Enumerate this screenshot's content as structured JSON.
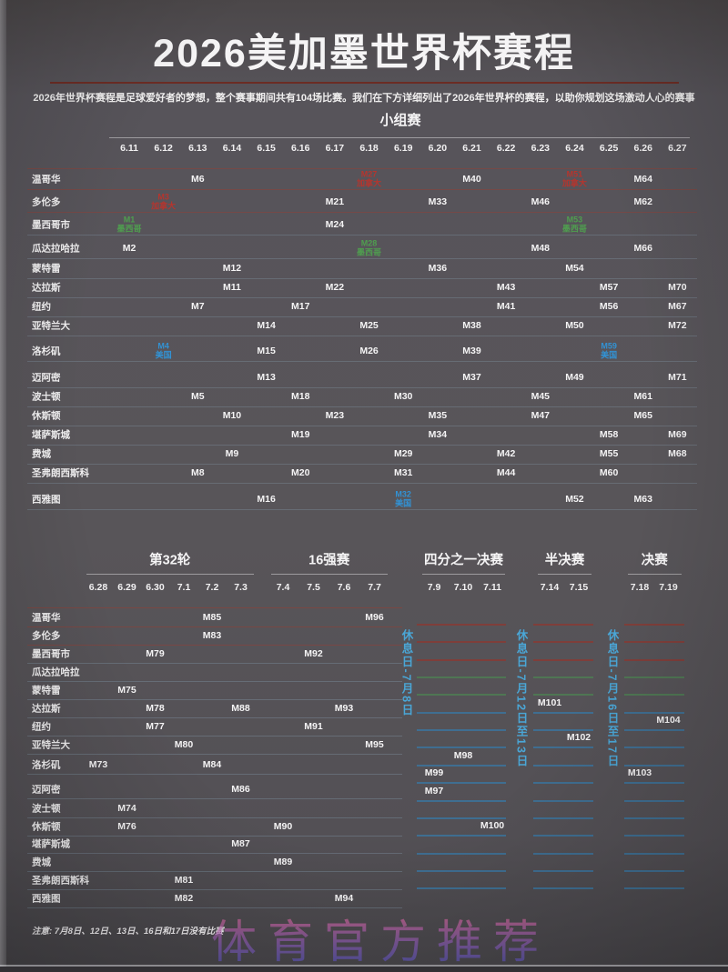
{
  "page": {
    "title": "2026美加墨世界杯赛程",
    "subtitle": "2026年世界杯赛程是足球爱好者的梦想，整个赛事期间共有104场比赛。我们在下方详细列出了2026年世界杯的赛程，以助你规划这场激动人心的赛事",
    "note": "注意: 7月8日、12日、13日、16日和17日没有比赛",
    "watermark": "体育官方推荐"
  },
  "colors": {
    "background": "#57545a",
    "title_rule": "#6e2a22",
    "mexico_green": "#4f9e4f",
    "usa_blue": "#3292d4",
    "canada_red": "#b5352e",
    "rest_day_blue": "#4aa6d6",
    "slot_blue": "#3976a0",
    "slot_red": "#8a3a33",
    "slot_green": "#4d7f53"
  },
  "chart_data": {
    "type": "table",
    "title": "2026美加墨世界杯赛程",
    "group_stage": {
      "header": "小组赛",
      "dates": [
        "6.11",
        "6.12",
        "6.13",
        "6.14",
        "6.15",
        "6.16",
        "6.17",
        "6.18",
        "6.19",
        "6.20",
        "6.21",
        "6.22",
        "6.23",
        "6.24",
        "6.25",
        "6.26",
        "6.27"
      ],
      "cities": [
        "温哥华",
        "多伦多",
        "墨西哥市",
        "瓜达拉哈拉",
        "蒙特雷",
        "达拉斯",
        "纽约",
        "亚特兰大",
        "洛杉矶",
        "迈阿密",
        "波士顿",
        "休斯顿",
        "堪萨斯城",
        "费城",
        "圣弗朗西斯科",
        "西雅图"
      ],
      "matches": [
        {
          "city": "温哥华",
          "date": "6.13",
          "label": "M6"
        },
        {
          "city": "温哥华",
          "date": "6.18",
          "label": "M27",
          "country": "加拿大",
          "color": "red"
        },
        {
          "city": "温哥华",
          "date": "6.21",
          "label": "M40"
        },
        {
          "city": "温哥华",
          "date": "6.24",
          "label": "M51",
          "country": "加拿大",
          "color": "red"
        },
        {
          "city": "温哥华",
          "date": "6.26",
          "label": "M64"
        },
        {
          "city": "多伦多",
          "date": "6.12",
          "label": "M3",
          "country": "加拿大",
          "color": "red"
        },
        {
          "city": "多伦多",
          "date": "6.17",
          "label": "M21"
        },
        {
          "city": "多伦多",
          "date": "6.20",
          "label": "M33"
        },
        {
          "city": "多伦多",
          "date": "6.23",
          "label": "M46"
        },
        {
          "city": "多伦多",
          "date": "6.26",
          "label": "M62"
        },
        {
          "city": "墨西哥市",
          "date": "6.11",
          "label": "M1",
          "country": "墨西哥",
          "color": "green"
        },
        {
          "city": "墨西哥市",
          "date": "6.17",
          "label": "M24"
        },
        {
          "city": "墨西哥市",
          "date": "6.24",
          "label": "M53",
          "country": "墨西哥",
          "color": "green"
        },
        {
          "city": "瓜达拉哈拉",
          "date": "6.11",
          "label": "M2"
        },
        {
          "city": "瓜达拉哈拉",
          "date": "6.18",
          "label": "M28",
          "country": "墨西哥",
          "color": "green"
        },
        {
          "city": "瓜达拉哈拉",
          "date": "6.23",
          "label": "M48"
        },
        {
          "city": "瓜达拉哈拉",
          "date": "6.26",
          "label": "M66"
        },
        {
          "city": "蒙特雷",
          "date": "6.14",
          "label": "M12"
        },
        {
          "city": "蒙特雷",
          "date": "6.20",
          "label": "M36"
        },
        {
          "city": "蒙特雷",
          "date": "6.24",
          "label": "M54"
        },
        {
          "city": "达拉斯",
          "date": "6.14",
          "label": "M11"
        },
        {
          "city": "达拉斯",
          "date": "6.17",
          "label": "M22"
        },
        {
          "city": "达拉斯",
          "date": "6.22",
          "label": "M43"
        },
        {
          "city": "达拉斯",
          "date": "6.25",
          "label": "M57"
        },
        {
          "city": "达拉斯",
          "date": "6.27",
          "label": "M70"
        },
        {
          "city": "纽约",
          "date": "6.13",
          "label": "M7"
        },
        {
          "city": "纽约",
          "date": "6.16",
          "label": "M17"
        },
        {
          "city": "纽约",
          "date": "6.22",
          "label": "M41"
        },
        {
          "city": "纽约",
          "date": "6.25",
          "label": "M56"
        },
        {
          "city": "纽约",
          "date": "6.27",
          "label": "M67"
        },
        {
          "city": "亚特兰大",
          "date": "6.15",
          "label": "M14"
        },
        {
          "city": "亚特兰大",
          "date": "6.18",
          "label": "M25"
        },
        {
          "city": "亚特兰大",
          "date": "6.21",
          "label": "M38"
        },
        {
          "city": "亚特兰大",
          "date": "6.24",
          "label": "M50"
        },
        {
          "city": "亚特兰大",
          "date": "6.27",
          "label": "M72"
        },
        {
          "city": "洛杉矶",
          "date": "6.12",
          "label": "M4",
          "country": "美国",
          "color": "blue"
        },
        {
          "city": "洛杉矶",
          "date": "6.15",
          "label": "M15"
        },
        {
          "city": "洛杉矶",
          "date": "6.18",
          "label": "M26"
        },
        {
          "city": "洛杉矶",
          "date": "6.21",
          "label": "M39"
        },
        {
          "city": "洛杉矶",
          "date": "6.25",
          "label": "M59",
          "country": "美国",
          "color": "blue"
        },
        {
          "city": "迈阿密",
          "date": "6.15",
          "label": "M13"
        },
        {
          "city": "迈阿密",
          "date": "6.21",
          "label": "M37"
        },
        {
          "city": "迈阿密",
          "date": "6.24",
          "label": "M49"
        },
        {
          "city": "迈阿密",
          "date": "6.27",
          "label": "M71"
        },
        {
          "city": "波士顿",
          "date": "6.13",
          "label": "M5"
        },
        {
          "city": "波士顿",
          "date": "6.16",
          "label": "M18"
        },
        {
          "city": "波士顿",
          "date": "6.19",
          "label": "M30"
        },
        {
          "city": "波士顿",
          "date": "6.23",
          "label": "M45"
        },
        {
          "city": "波士顿",
          "date": "6.26",
          "label": "M61"
        },
        {
          "city": "休斯顿",
          "date": "6.14",
          "label": "M10"
        },
        {
          "city": "休斯顿",
          "date": "6.17",
          "label": "M23"
        },
        {
          "city": "休斯顿",
          "date": "6.20",
          "label": "M35"
        },
        {
          "city": "休斯顿",
          "date": "6.23",
          "label": "M47"
        },
        {
          "city": "休斯顿",
          "date": "6.26",
          "label": "M65"
        },
        {
          "city": "堪萨斯城",
          "date": "6.16",
          "label": "M19"
        },
        {
          "city": "堪萨斯城",
          "date": "6.20",
          "label": "M34"
        },
        {
          "city": "堪萨斯城",
          "date": "6.25",
          "label": "M58"
        },
        {
          "city": "堪萨斯城",
          "date": "6.27",
          "label": "M69"
        },
        {
          "city": "费城",
          "date": "6.14",
          "label": "M9"
        },
        {
          "city": "费城",
          "date": "6.19",
          "label": "M29"
        },
        {
          "city": "费城",
          "date": "6.22",
          "label": "M42"
        },
        {
          "city": "费城",
          "date": "6.25",
          "label": "M55"
        },
        {
          "city": "费城",
          "date": "6.27",
          "label": "M68"
        },
        {
          "city": "圣弗朗西斯科",
          "date": "6.13",
          "label": "M8"
        },
        {
          "city": "圣弗朗西斯科",
          "date": "6.16",
          "label": "M20"
        },
        {
          "city": "圣弗朗西斯科",
          "date": "6.19",
          "label": "M31"
        },
        {
          "city": "圣弗朗西斯科",
          "date": "6.22",
          "label": "M44"
        },
        {
          "city": "圣弗朗西斯科",
          "date": "6.25",
          "label": "M60"
        },
        {
          "city": "西雅图",
          "date": "6.15",
          "label": "M16"
        },
        {
          "city": "西雅图",
          "date": "6.19",
          "label": "M32",
          "country": "美国",
          "color": "blue"
        },
        {
          "city": "西雅图",
          "date": "6.24",
          "label": "M52"
        },
        {
          "city": "西雅图",
          "date": "6.26",
          "label": "M63"
        }
      ]
    },
    "knockout": {
      "stages": [
        {
          "label": "第32轮",
          "dates": [
            "6.28",
            "6.29",
            "6.30",
            "7.1",
            "7.2",
            "7.3"
          ]
        },
        {
          "label": "16强赛",
          "dates": [
            "7.4",
            "7.5",
            "7.6",
            "7.7"
          ]
        },
        {
          "label": "四分之一决赛",
          "dates": [
            "7.9",
            "7.10",
            "7.11"
          ]
        },
        {
          "label": "半决赛",
          "dates": [
            "7.14",
            "7.15"
          ]
        },
        {
          "label": "决赛",
          "dates": [
            "7.18",
            "7.19"
          ]
        }
      ],
      "matches": [
        {
          "city": "温哥华",
          "date": "7.2",
          "label": "M85"
        },
        {
          "city": "温哥华",
          "date": "7.7",
          "label": "M96"
        },
        {
          "city": "多伦多",
          "date": "7.2",
          "label": "M83"
        },
        {
          "city": "墨西哥市",
          "date": "6.30",
          "label": "M79"
        },
        {
          "city": "墨西哥市",
          "date": "7.5",
          "label": "M92"
        },
        {
          "city": "蒙特雷",
          "date": "6.29",
          "label": "M75"
        },
        {
          "city": "达拉斯",
          "date": "6.30",
          "label": "M78"
        },
        {
          "city": "达拉斯",
          "date": "7.3",
          "label": "M88"
        },
        {
          "city": "达拉斯",
          "date": "7.6",
          "label": "M93"
        },
        {
          "city": "纽约",
          "date": "6.30",
          "label": "M77"
        },
        {
          "city": "纽约",
          "date": "7.5",
          "label": "M91"
        },
        {
          "city": "亚特兰大",
          "date": "7.1",
          "label": "M80"
        },
        {
          "city": "亚特兰大",
          "date": "7.7",
          "label": "M95"
        },
        {
          "city": "洛杉矶",
          "date": "6.28",
          "label": "M73"
        },
        {
          "city": "洛杉矶",
          "date": "7.2",
          "label": "M84"
        },
        {
          "city": "迈阿密",
          "date": "7.3",
          "label": "M86"
        },
        {
          "city": "波士顿",
          "date": "6.29",
          "label": "M74"
        },
        {
          "city": "休斯顿",
          "date": "6.29",
          "label": "M76"
        },
        {
          "city": "休斯顿",
          "date": "7.4",
          "label": "M90"
        },
        {
          "city": "堪萨斯城",
          "date": "7.3",
          "label": "M87"
        },
        {
          "city": "费城",
          "date": "7.4",
          "label": "M89"
        },
        {
          "city": "圣弗朗西斯科",
          "date": "7.1",
          "label": "M81"
        },
        {
          "city": "西雅图",
          "date": "7.1",
          "label": "M82"
        },
        {
          "city": "西雅图",
          "date": "7.6",
          "label": "M94"
        }
      ],
      "bracket_columns": [
        {
          "stage": "四分之一决赛",
          "rest_day": "休息日-7月8日",
          "matches": [
            {
              "label": "M98",
              "date": "7.10",
              "slot": 8
            },
            {
              "label": "M99",
              "date": "7.9",
              "slot": 9
            },
            {
              "label": "M97",
              "date": "7.9",
              "slot": 10
            },
            {
              "label": "M100",
              "date": "7.11",
              "slot": 12
            }
          ]
        },
        {
          "stage": "半决赛",
          "rest_day": "休息日-7月12日至13日",
          "matches": [
            {
              "label": "M101",
              "date": "7.14",
              "slot": 5
            },
            {
              "label": "M102",
              "date": "7.15",
              "slot": 7
            }
          ]
        },
        {
          "stage": "决赛",
          "rest_day": "休息日-7月16日至17日",
          "matches": [
            {
              "label": "M104",
              "date": "7.19",
              "slot": 6
            },
            {
              "label": "M103",
              "date": "7.18",
              "slot": 9
            }
          ]
        }
      ]
    }
  }
}
